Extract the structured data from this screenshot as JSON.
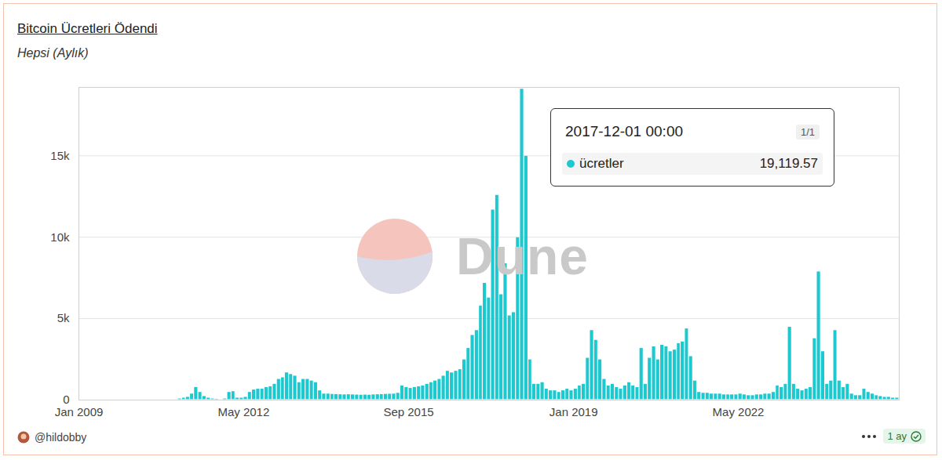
{
  "chart_data": {
    "type": "bar",
    "title": "Bitcoin Ücretleri Ödendi",
    "subtitle": "Hepsi (Aylık)",
    "watermark": "Dune",
    "author": "@hildobby",
    "refresh": "1 ay",
    "tooltip": {
      "label": "2017-12-01 00:00",
      "page": "1/1",
      "series": "ücretler",
      "value_label": "19,119.57"
    },
    "color": "#1ec8cf",
    "grid": true,
    "xlim": [
      "2009-01",
      "2025-08"
    ],
    "xticks": [
      {
        "value": "2009-01",
        "label": "Jan 2009"
      },
      {
        "value": "2012-05",
        "label": "May 2012"
      },
      {
        "value": "2015-09",
        "label": "Sep 2015"
      },
      {
        "value": "2019-01",
        "label": "Jan 2019"
      },
      {
        "value": "2022-05",
        "label": "May 2022"
      }
    ],
    "ylim": [
      0,
      19200
    ],
    "yticks": [
      0,
      {
        "value": 5000,
        "label": "5k"
      },
      {
        "value": 10000,
        "label": "10k"
      },
      {
        "value": 15000,
        "label": "15k"
      }
    ],
    "x": [
      "2009-01",
      "2009-02",
      "2009-03",
      "2009-04",
      "2009-05",
      "2009-06",
      "2009-07",
      "2009-08",
      "2009-09",
      "2009-10",
      "2009-11",
      "2009-12",
      "2010-01",
      "2010-02",
      "2010-03",
      "2010-04",
      "2010-05",
      "2010-06",
      "2010-07",
      "2010-08",
      "2010-09",
      "2010-10",
      "2010-11",
      "2010-12",
      "2011-01",
      "2011-02",
      "2011-03",
      "2011-04",
      "2011-05",
      "2011-06",
      "2011-07",
      "2011-08",
      "2011-09",
      "2011-10",
      "2011-11",
      "2011-12",
      "2012-01",
      "2012-02",
      "2012-03",
      "2012-04",
      "2012-05",
      "2012-06",
      "2012-07",
      "2012-08",
      "2012-09",
      "2012-10",
      "2012-11",
      "2012-12",
      "2013-01",
      "2013-02",
      "2013-03",
      "2013-04",
      "2013-05",
      "2013-06",
      "2013-07",
      "2013-08",
      "2013-09",
      "2013-10",
      "2013-11",
      "2013-12",
      "2014-01",
      "2014-02",
      "2014-03",
      "2014-04",
      "2014-05",
      "2014-06",
      "2014-07",
      "2014-08",
      "2014-09",
      "2014-10",
      "2014-11",
      "2014-12",
      "2015-01",
      "2015-02",
      "2015-03",
      "2015-04",
      "2015-05",
      "2015-06",
      "2015-07",
      "2015-08",
      "2015-09",
      "2015-10",
      "2015-11",
      "2015-12",
      "2016-01",
      "2016-02",
      "2016-03",
      "2016-04",
      "2016-05",
      "2016-06",
      "2016-07",
      "2016-08",
      "2016-09",
      "2016-10",
      "2016-11",
      "2016-12",
      "2017-01",
      "2017-02",
      "2017-03",
      "2017-04",
      "2017-05",
      "2017-06",
      "2017-07",
      "2017-08",
      "2017-09",
      "2017-10",
      "2017-11",
      "2017-12",
      "2018-01",
      "2018-02",
      "2018-03",
      "2018-04",
      "2018-05",
      "2018-06",
      "2018-07",
      "2018-08",
      "2018-09",
      "2018-10",
      "2018-11",
      "2018-12",
      "2019-01",
      "2019-02",
      "2019-03",
      "2019-04",
      "2019-05",
      "2019-06",
      "2019-07",
      "2019-08",
      "2019-09",
      "2019-10",
      "2019-11",
      "2019-12",
      "2020-01",
      "2020-02",
      "2020-03",
      "2020-04",
      "2020-05",
      "2020-06",
      "2020-07",
      "2020-08",
      "2020-09",
      "2020-10",
      "2020-11",
      "2020-12",
      "2021-01",
      "2021-02",
      "2021-03",
      "2021-04",
      "2021-05",
      "2021-06",
      "2021-07",
      "2021-08",
      "2021-09",
      "2021-10",
      "2021-11",
      "2021-12",
      "2022-01",
      "2022-02",
      "2022-03",
      "2022-04",
      "2022-05",
      "2022-06",
      "2022-07",
      "2022-08",
      "2022-09",
      "2022-10",
      "2022-11",
      "2022-12",
      "2023-01",
      "2023-02",
      "2023-03",
      "2023-04",
      "2023-05",
      "2023-06",
      "2023-07",
      "2023-08",
      "2023-09",
      "2023-10",
      "2023-11",
      "2023-12",
      "2024-01",
      "2024-02",
      "2024-03",
      "2024-04",
      "2024-05",
      "2024-06",
      "2024-07",
      "2024-08",
      "2024-09",
      "2024-10",
      "2024-11",
      "2024-12",
      "2025-01",
      "2025-02",
      "2025-03",
      "2025-04",
      "2025-05",
      "2025-06",
      "2025-07"
    ],
    "values": [
      0,
      0,
      0,
      0,
      0,
      0,
      0,
      0,
      0,
      0,
      0,
      0,
      1,
      1,
      1,
      2,
      2,
      3,
      5,
      5,
      10,
      20,
      30,
      40,
      100,
      150,
      200,
      400,
      800,
      500,
      250,
      150,
      100,
      80,
      60,
      100,
      500,
      550,
      150,
      150,
      200,
      500,
      650,
      700,
      700,
      800,
      850,
      1000,
      1300,
      1400,
      1700,
      1600,
      1500,
      1100,
      1300,
      1300,
      1200,
      1100,
      600,
      400,
      400,
      380,
      370,
      360,
      350,
      360,
      350,
      340,
      330,
      340,
      330,
      350,
      360,
      370,
      380,
      390,
      400,
      450,
      900,
      800,
      750,
      800,
      850,
      900,
      1000,
      1100,
      1200,
      1300,
      1500,
      1800,
      1700,
      1800,
      1900,
      2500,
      3200,
      4000,
      4300,
      5800,
      7200,
      6300,
      11700,
      12600,
      6500,
      8400,
      5200,
      5400,
      10000,
      19119.57,
      15000,
      2500,
      1000,
      1000,
      1100,
      700,
      600,
      600,
      500,
      600,
      700,
      600,
      700,
      900,
      1000,
      2600,
      4300,
      3700,
      2500,
      1300,
      900,
      1000,
      800,
      700,
      900,
      1100,
      900,
      800,
      3200,
      1000,
      2600,
      3300,
      2500,
      3400,
      3300,
      3000,
      3100,
      3500,
      3600,
      4400,
      2700,
      1200,
      500,
      450,
      450,
      400,
      400,
      400,
      350,
      350,
      350,
      350,
      400,
      350,
      300,
      300,
      350,
      350,
      400,
      400,
      500,
      900,
      800,
      1000,
      4500,
      1000,
      700,
      600,
      700,
      800,
      3800,
      7900,
      3000,
      1000,
      1200,
      4300,
      1200,
      800,
      1000,
      400,
      300,
      300,
      700,
      500,
      400,
      300,
      250,
      200,
      200,
      150,
      150
    ]
  }
}
